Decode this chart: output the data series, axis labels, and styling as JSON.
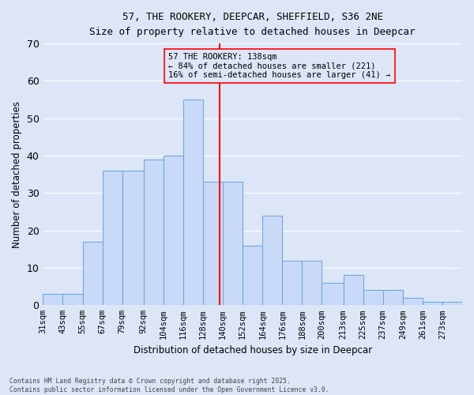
{
  "title1": "57, THE ROOKERY, DEEPCAR, SHEFFIELD, S36 2NE",
  "title2": "Size of property relative to detached houses in Deepcar",
  "xlabel": "Distribution of detached houses by size in Deepcar",
  "ylabel": "Number of detached properties",
  "footnote": "Contains HM Land Registry data © Crown copyright and database right 2025.\nContains public sector information licensed under the Open Government Licence v3.0.",
  "bin_labels": [
    "31sqm",
    "43sqm",
    "55sqm",
    "67sqm",
    "79sqm",
    "92sqm",
    "104sqm",
    "116sqm",
    "128sqm",
    "140sqm",
    "152sqm",
    "164sqm",
    "176sqm",
    "188sqm",
    "200sqm",
    "213sqm",
    "225sqm",
    "237sqm",
    "249sqm",
    "261sqm",
    "273sqm"
  ],
  "bar_heights": [
    3,
    3,
    17,
    36,
    36,
    39,
    40,
    55,
    33,
    33,
    16,
    24,
    12,
    12,
    6,
    8,
    4,
    4,
    2,
    1,
    1
  ],
  "property_line_x": 138,
  "annotation_text": "57 THE ROOKERY: 138sqm\n← 84% of detached houses are smaller (221)\n16% of semi-detached houses are larger (41) →",
  "bar_color": "#c9daf8",
  "bar_edge_color": "#6fa8dc",
  "line_color": "red",
  "annotation_box_color": "red",
  "background_color": "#dce6f7",
  "grid_color": "white",
  "ylim": [
    0,
    70
  ],
  "bin_edges": [
    31,
    43,
    55,
    67,
    79,
    92,
    104,
    116,
    128,
    140,
    152,
    164,
    176,
    188,
    200,
    213,
    225,
    237,
    249,
    261,
    273,
    285
  ]
}
